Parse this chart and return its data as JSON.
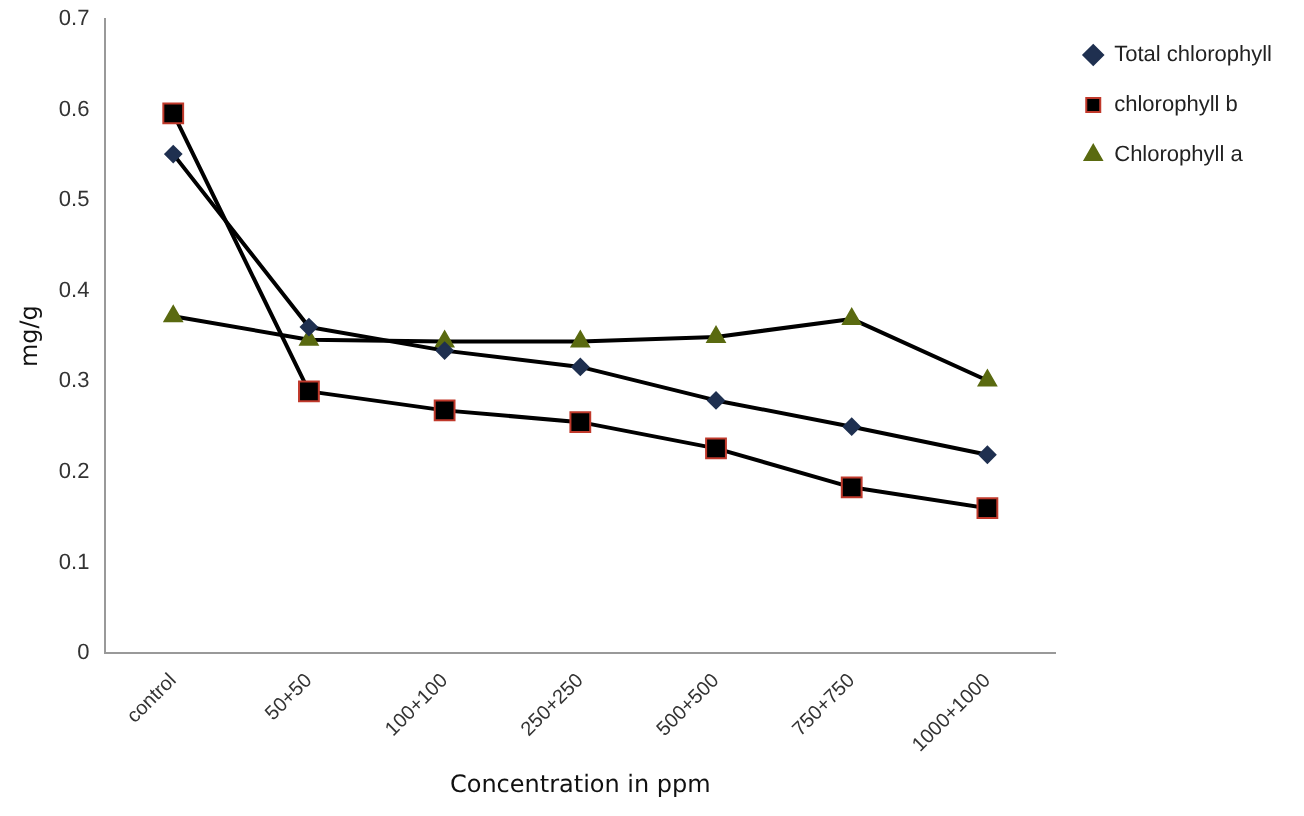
{
  "chart_data": {
    "type": "line",
    "xlabel": "Concentration in ppm",
    "ylabel": "mg/g",
    "categories": [
      "control",
      "50+50",
      "100+100",
      "250+250",
      "500+500",
      "750+750",
      "1000+1000"
    ],
    "series": [
      {
        "name": "Total chlorophyll",
        "color": "#1f3050",
        "marker": "diamond",
        "values": [
          0.551,
          0.36,
          0.334,
          0.316,
          0.279,
          0.25,
          0.219
        ]
      },
      {
        "name": "chlorophyll b",
        "color": "#000000",
        "marker": "square",
        "values": [
          0.596,
          0.289,
          0.268,
          0.255,
          0.226,
          0.183,
          0.16
        ]
      },
      {
        "name": "Chlorophyll a",
        "color": "#5a6a10",
        "marker": "triangle",
        "values": [
          0.372,
          0.346,
          0.344,
          0.344,
          0.349,
          0.369,
          0.301
        ]
      }
    ],
    "ylim": [
      0,
      0.7
    ],
    "yticks": [
      0,
      0.1,
      0.2,
      0.3,
      0.4,
      0.5,
      0.6,
      0.7
    ],
    "grid": false,
    "legend": "right"
  }
}
